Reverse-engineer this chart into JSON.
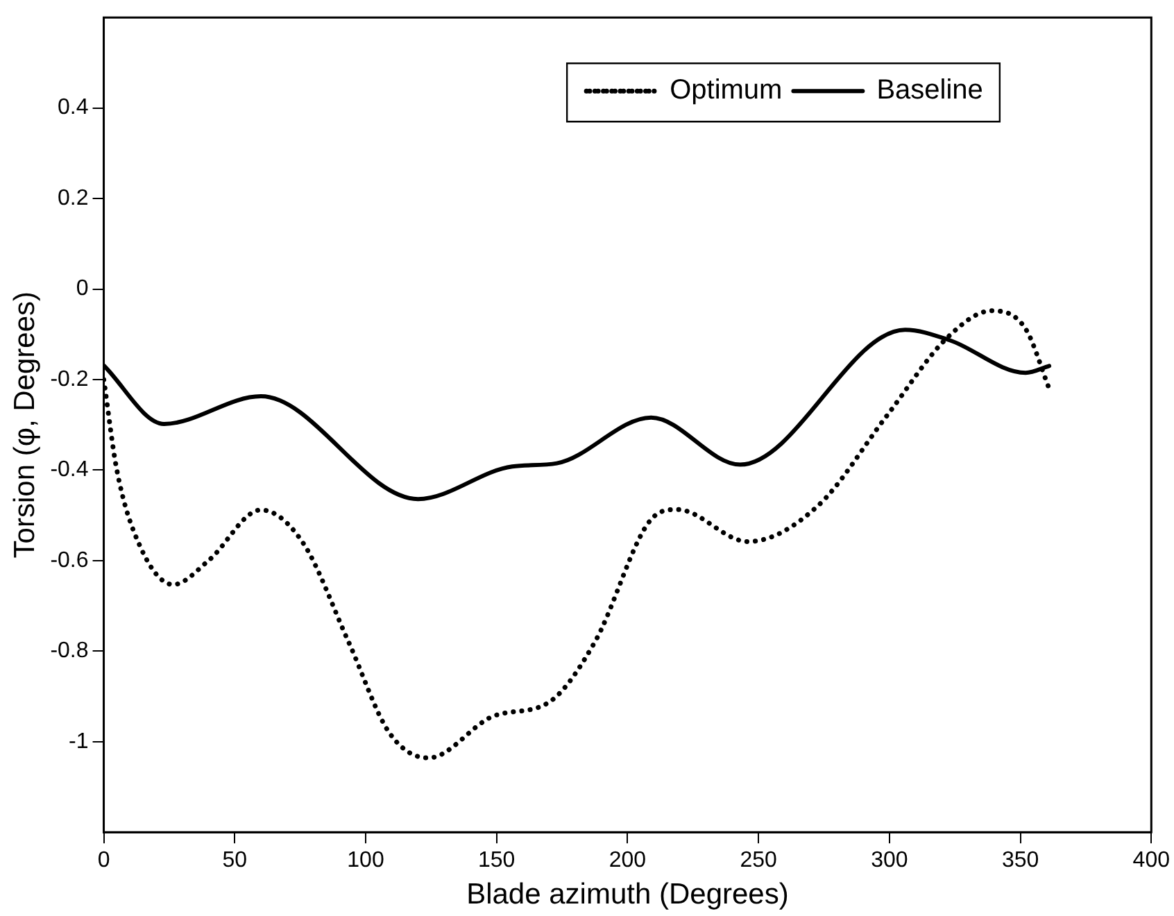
{
  "chart_data": {
    "type": "line",
    "xlabel": "Blade azimuth (Degrees)",
    "ylabel": "Torsion (φ, Degrees)",
    "xlim": [
      0,
      400
    ],
    "xticks": [
      0,
      50,
      100,
      150,
      200,
      250,
      300,
      350,
      400
    ],
    "ylim": [
      -1.2,
      0.6
    ],
    "yticks": [
      -1,
      -0.8,
      -0.6,
      -0.4,
      -0.2,
      0,
      0.2,
      0.4
    ],
    "grid": false,
    "legend": "top right",
    "marker": "none",
    "series": [
      {
        "name": "Optimum",
        "color": "#000000",
        "line_style": "dotted",
        "x": [
          0,
          5,
          14,
          26.5,
          40,
          60,
          76,
          93.5,
          109,
          124,
          149,
          170,
          187.5,
          209,
          219,
          246,
          272.5,
          299,
          322,
          339,
          352,
          361
        ],
        "values": [
          -0.2,
          -0.4,
          -0.57,
          -0.653,
          -0.6,
          -0.488,
          -0.56,
          -0.78,
          -0.98,
          -1.036,
          -0.943,
          -0.913,
          -0.78,
          -0.509,
          -0.487,
          -0.558,
          -0.48,
          -0.28,
          -0.108,
          -0.048,
          -0.088,
          -0.22
        ]
      },
      {
        "name": "Baseline",
        "color": "#000000",
        "line_style": "solid",
        "x": [
          0,
          23,
          60,
          120,
          156,
          173,
          209,
          243,
          306,
          323,
          352,
          361
        ],
        "values": [
          -0.169,
          -0.298,
          -0.237,
          -0.464,
          -0.392,
          -0.385,
          -0.284,
          -0.388,
          -0.09,
          -0.113,
          -0.185,
          -0.17
        ]
      }
    ]
  }
}
